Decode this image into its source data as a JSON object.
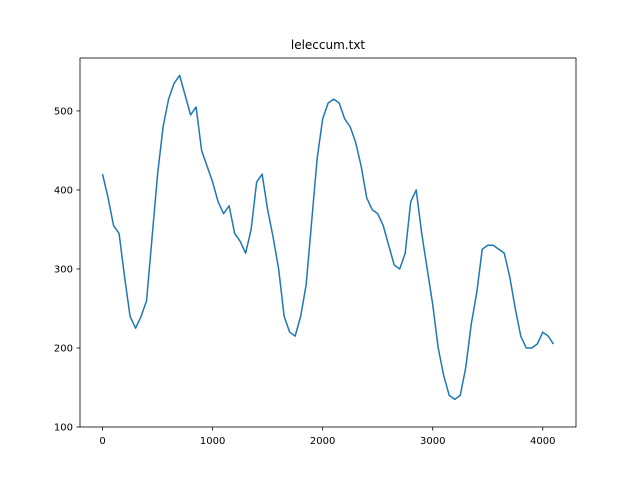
{
  "chart_data": {
    "type": "line",
    "title": "leleccum.txt",
    "x": [
      0,
      50,
      100,
      150,
      200,
      250,
      300,
      350,
      400,
      450,
      500,
      550,
      600,
      650,
      700,
      750,
      800,
      850,
      900,
      950,
      1000,
      1050,
      1100,
      1150,
      1200,
      1250,
      1300,
      1350,
      1400,
      1450,
      1500,
      1550,
      1600,
      1650,
      1700,
      1750,
      1800,
      1850,
      1900,
      1950,
      2000,
      2050,
      2100,
      2150,
      2200,
      2250,
      2300,
      2350,
      2400,
      2450,
      2500,
      2550,
      2600,
      2650,
      2700,
      2750,
      2800,
      2850,
      2900,
      2950,
      3000,
      3050,
      3100,
      3150,
      3200,
      3250,
      3300,
      3350,
      3400,
      3450,
      3500,
      3550,
      3600,
      3650,
      3700,
      3750,
      3800,
      3850,
      3900,
      3950,
      4000,
      4050,
      4097
    ],
    "series": [
      {
        "color": "#1f77b4",
        "values": [
          420,
          390,
          355,
          345,
          290,
          240,
          225,
          240,
          260,
          340,
          420,
          480,
          515,
          535,
          545,
          520,
          495,
          505,
          450,
          430,
          410,
          385,
          370,
          380,
          345,
          335,
          320,
          350,
          410,
          420,
          375,
          340,
          300,
          240,
          220,
          215,
          240,
          280,
          360,
          440,
          490,
          510,
          515,
          510,
          490,
          480,
          460,
          430,
          390,
          375,
          370,
          355,
          330,
          305,
          300,
          320,
          385,
          400,
          345,
          300,
          255,
          200,
          165,
          140,
          135,
          140,
          175,
          230,
          270,
          325,
          330,
          330,
          325,
          320,
          290,
          250,
          215,
          200,
          200,
          205,
          220,
          215,
          205
        ]
      }
    ],
    "xlim": [
      -205,
      4302
    ],
    "ylim": [
      100,
      567
    ],
    "xticks": [
      0,
      1000,
      2000,
      3000,
      4000
    ],
    "yticks": [
      100,
      200,
      300,
      400,
      500
    ]
  }
}
